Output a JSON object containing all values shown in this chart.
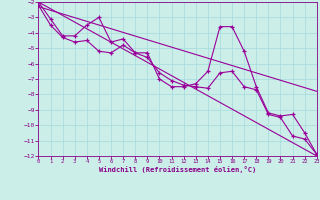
{
  "xlabel": "Windchill (Refroidissement éolien,°C)",
  "background_color": "#cceee8",
  "grid_color": "#aadddd",
  "line_color": "#990099",
  "tick_color": "#880088",
  "xlim": [
    0,
    23
  ],
  "ylim": [
    -12,
    -2
  ],
  "xticks": [
    0,
    1,
    2,
    3,
    4,
    5,
    6,
    7,
    8,
    9,
    10,
    11,
    12,
    13,
    14,
    15,
    16,
    17,
    18,
    19,
    20,
    21,
    22,
    23
  ],
  "yticks": [
    -12,
    -11,
    -10,
    -9,
    -8,
    -7,
    -6,
    -5,
    -4,
    -3,
    -2
  ],
  "series": [
    {
      "x": [
        0,
        1,
        2,
        3,
        4,
        5,
        6,
        7,
        8,
        9,
        10,
        11,
        12,
        13,
        14,
        15,
        16,
        17,
        18,
        19,
        20,
        21,
        22,
        23
      ],
      "y": [
        -2.0,
        -3.1,
        -4.2,
        -4.2,
        -3.5,
        -3.0,
        -4.6,
        -4.4,
        -5.3,
        -5.3,
        -7.0,
        -7.5,
        -7.5,
        -7.3,
        -6.5,
        -3.6,
        -3.6,
        -5.2,
        -7.5,
        -9.2,
        -9.4,
        -9.3,
        -10.5,
        -11.9
      ]
    },
    {
      "x": [
        0,
        1,
        2,
        3,
        4,
        5,
        6,
        7,
        8,
        9,
        10,
        11,
        12,
        13,
        14,
        15,
        16,
        17,
        18,
        19,
        20,
        21,
        22,
        23
      ],
      "y": [
        -2.2,
        -3.5,
        -4.3,
        -4.6,
        -4.5,
        -5.2,
        -5.3,
        -4.8,
        -5.3,
        -5.6,
        -6.6,
        -7.1,
        -7.4,
        -7.5,
        -7.6,
        -6.6,
        -6.5,
        -7.5,
        -7.7,
        -9.3,
        -9.5,
        -10.7,
        -10.9,
        -11.9
      ]
    },
    {
      "x": [
        0,
        23
      ],
      "y": [
        -2.0,
        -12.0
      ]
    },
    {
      "x": [
        0,
        23
      ],
      "y": [
        -2.3,
        -7.8
      ]
    }
  ]
}
